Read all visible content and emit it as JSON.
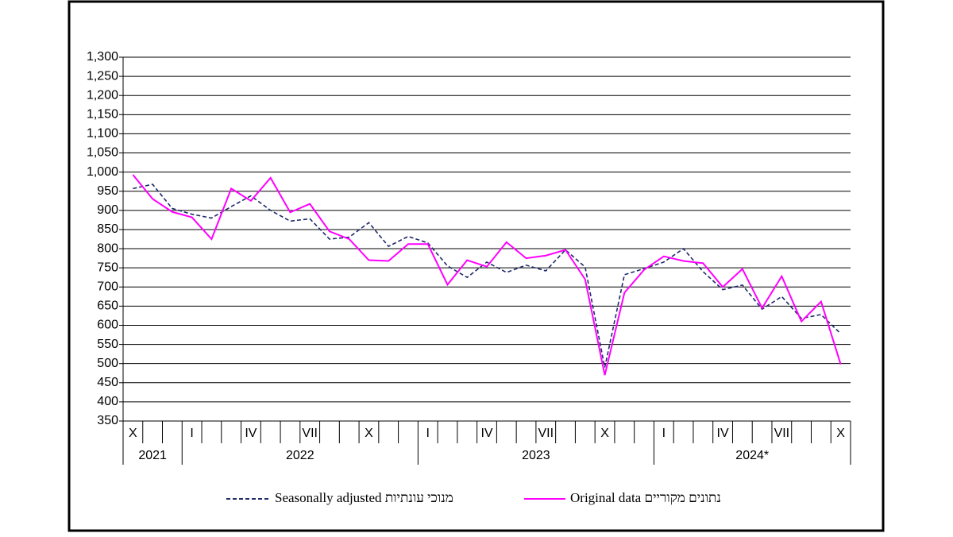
{
  "chart_data": {
    "type": "line",
    "categories": [
      "X",
      null,
      null,
      "I",
      null,
      null,
      "IV",
      null,
      null,
      "VII",
      null,
      null,
      "X",
      null,
      null,
      "I",
      null,
      null,
      "IV",
      null,
      null,
      "VII",
      null,
      null,
      "X",
      null,
      null,
      "I",
      null,
      null,
      "IV",
      null,
      null,
      "VII",
      null,
      null,
      "X"
    ],
    "year_groups": [
      {
        "label": "2021",
        "span": 3
      },
      {
        "label": "2022",
        "span": 12
      },
      {
        "label": "2023",
        "span": 12
      },
      {
        "label": "2024*",
        "span": 10
      }
    ],
    "series": [
      {
        "name": "Seasonally adjusted מנוכי עונתיות",
        "color": "#1f2a6b",
        "dashed": true,
        "values": [
          957,
          968,
          905,
          890,
          880,
          910,
          938,
          900,
          872,
          878,
          825,
          830,
          868,
          806,
          832,
          815,
          755,
          725,
          765,
          738,
          757,
          742,
          797,
          752,
          490,
          732,
          748,
          765,
          800,
          740,
          693,
          705,
          642,
          675,
          618,
          628,
          578
        ]
      },
      {
        "name": "Original data נתונים מקוריים",
        "color": "#ff00ff",
        "dashed": false,
        "values": [
          993,
          930,
          896,
          882,
          825,
          957,
          925,
          985,
          895,
          917,
          845,
          825,
          770,
          768,
          812,
          812,
          706,
          770,
          753,
          817,
          775,
          782,
          797,
          720,
          470,
          685,
          745,
          780,
          768,
          762,
          700,
          747,
          645,
          728,
          610,
          662,
          498
        ]
      }
    ],
    "ylim": [
      350,
      1300
    ],
    "yticks": [
      350,
      400,
      450,
      500,
      550,
      600,
      650,
      700,
      750,
      800,
      850,
      900,
      950,
      {
        "value": 1000,
        "label": "1,000"
      },
      {
        "value": 1050,
        "label": "1,050"
      },
      {
        "value": 1100,
        "label": "1,100"
      },
      {
        "value": 1150,
        "label": "1,150"
      },
      {
        "value": 1200,
        "label": "1,200"
      },
      {
        "value": 1250,
        "label": "1,250"
      },
      {
        "value": 1300,
        "label": "1,300"
      }
    ],
    "grid": true
  }
}
